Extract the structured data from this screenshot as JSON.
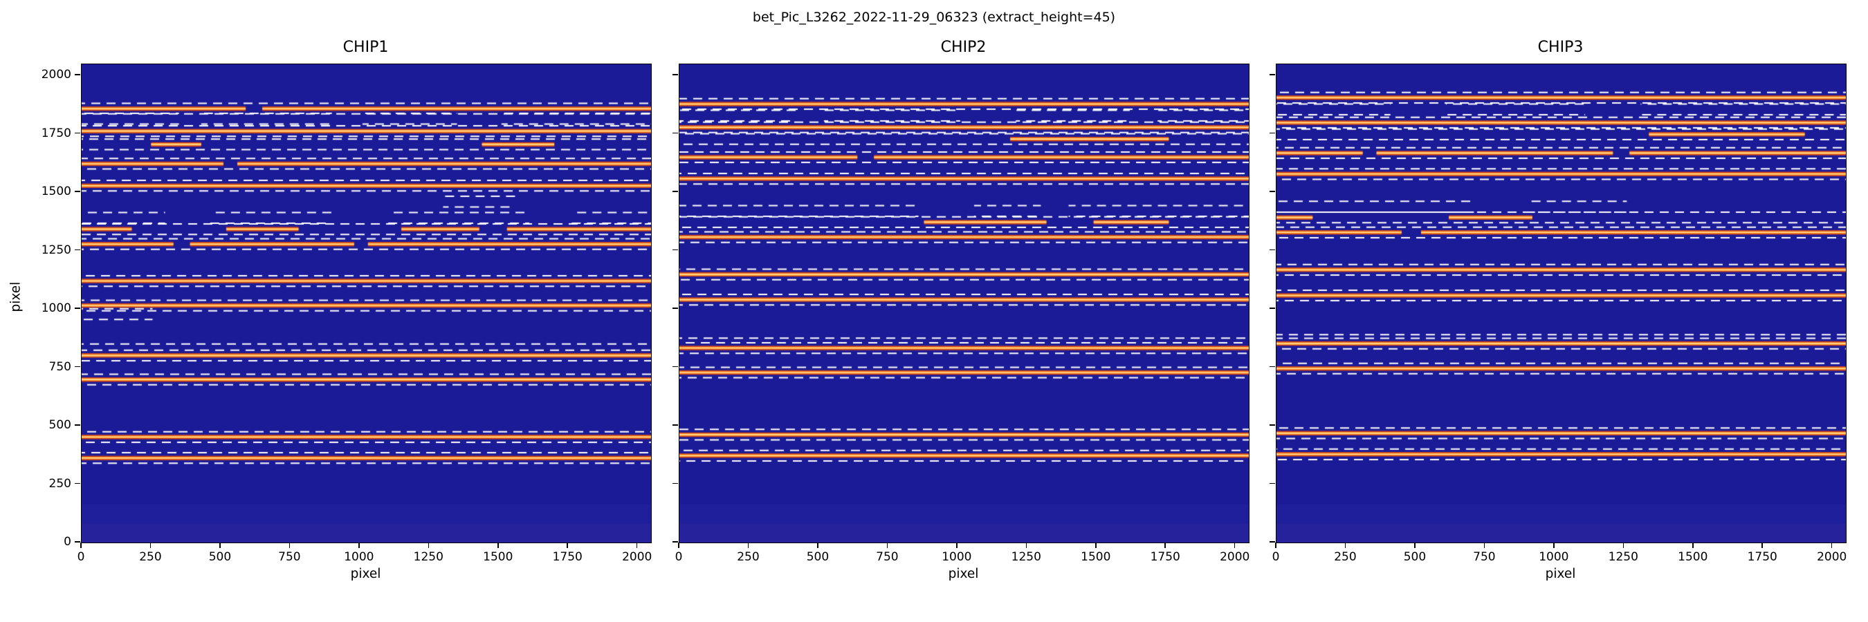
{
  "figure": {
    "title": "bet_Pic_L3262_2022-11-29_06323  (extract_height=45)"
  },
  "chart_data": {
    "type": "heatmap",
    "description": "Three echelle spectrograph detector frames (dark blue background) with bright orange spectral order traces; white dashed lines mark extraction window boundaries of half-height 22.5 px around each order (extract_height=45).",
    "extract_height": 45,
    "xlabel": "pixel",
    "ylabel": "pixel",
    "xlim": [
      0,
      2048
    ],
    "ylim": [
      0,
      2048
    ],
    "xticks": [
      "0",
      "250",
      "500",
      "750",
      "1000",
      "1250",
      "1500",
      "1750",
      "2000"
    ],
    "yticks": [
      "0",
      "250",
      "500",
      "750",
      "1000",
      "1250",
      "1500",
      "1750",
      "2000"
    ],
    "colors": {
      "background": "#1b1b97",
      "bottom_glow_1": "#23239e",
      "bottom_glow_2": "#2b259c",
      "trace_edge": "#c8401f",
      "trace": "#ff9726",
      "trace_core": "#ffd894",
      "extraction_line": "#ffffff",
      "text": "#000000"
    },
    "subplots": [
      {
        "title": "CHIP1",
        "yticklabels": true,
        "orders": [
          {
            "y": 362,
            "solid": [
              [
                0,
                2048
              ]
            ]
          },
          {
            "y": 452,
            "solid": [
              [
                0,
                2048
              ]
            ]
          },
          {
            "y": 698,
            "solid": [
              [
                0,
                2048
              ]
            ]
          },
          {
            "y": 801,
            "solid": [
              [
                0,
                2048
              ]
            ]
          },
          {
            "y": 1015,
            "solid": [
              [
                0,
                2048
              ]
            ]
          },
          {
            "y": 1120,
            "solid": [
              [
                0,
                2048
              ]
            ]
          },
          {
            "y": 1278,
            "solid": [
              [
                0,
                330
              ],
              [
                390,
                980
              ],
              [
                1030,
                2048
              ]
            ]
          },
          {
            "y": 1342,
            "solid": [
              [
                0,
                180
              ],
              [
                520,
                780
              ],
              [
                1150,
                1430
              ],
              [
                1530,
                2048
              ]
            ]
          },
          {
            "y": 1528,
            "solid": [
              [
                0,
                2048
              ]
            ]
          },
          {
            "y": 1622,
            "solid": [
              [
                0,
                510
              ],
              [
                560,
                2048
              ]
            ]
          },
          {
            "y": 1705,
            "solid": [
              [
                250,
                430
              ],
              [
                1440,
                1700
              ]
            ]
          },
          {
            "y": 1762,
            "solid": [
              [
                0,
                2048
              ]
            ]
          },
          {
            "y": 1858,
            "solid": [
              [
                0,
                590
              ],
              [
                650,
                2048
              ]
            ]
          }
        ],
        "ghosts": [
          {
            "y": 850,
            "segs": [
              [
                0,
                2048
              ]
            ]
          },
          {
            "y": 955,
            "segs": [
              [
                0,
                255
              ]
            ]
          },
          {
            "y": 1001,
            "segs": [
              [
                0,
                255
              ]
            ]
          },
          {
            "y": 1367,
            "segs": [
              [
                0,
                300
              ],
              [
                460,
                900
              ],
              [
                1100,
                1610
              ],
              [
                1760,
                2048
              ]
            ]
          },
          {
            "y": 1413,
            "segs": [
              [
                0,
                300
              ],
              [
                460,
                900
              ],
              [
                1100,
                1610
              ],
              [
                1760,
                2048
              ]
            ]
          },
          {
            "y": 1437,
            "segs": [
              [
                1300,
                1560
              ]
            ]
          },
          {
            "y": 1483,
            "segs": [
              [
                1300,
                1560
              ]
            ]
          },
          {
            "y": 1792,
            "segs": [
              [
                0,
                350
              ],
              [
                430,
                900
              ],
              [
                1010,
                1350
              ],
              [
                1510,
                2048
              ]
            ]
          },
          {
            "y": 1838,
            "segs": [
              [
                0,
                350
              ],
              [
                430,
                900
              ],
              [
                1010,
                1350
              ],
              [
                1510,
                2048
              ]
            ]
          }
        ]
      },
      {
        "title": "CHIP2",
        "yticklabels": false,
        "orders": [
          {
            "y": 372,
            "solid": [
              [
                0,
                2048
              ]
            ]
          },
          {
            "y": 462,
            "solid": [
              [
                0,
                2048
              ]
            ]
          },
          {
            "y": 728,
            "solid": [
              [
                0,
                2048
              ]
            ]
          },
          {
            "y": 833,
            "solid": [
              [
                0,
                2048
              ]
            ]
          },
          {
            "y": 1040,
            "solid": [
              [
                0,
                2048
              ]
            ]
          },
          {
            "y": 1148,
            "solid": [
              [
                0,
                2048
              ]
            ]
          },
          {
            "y": 1308,
            "solid": [
              [
                0,
                2048
              ]
            ]
          },
          {
            "y": 1372,
            "solid": [
              [
                880,
                1320
              ],
              [
                1490,
                1760
              ]
            ]
          },
          {
            "y": 1558,
            "solid": [
              [
                0,
                2048
              ]
            ]
          },
          {
            "y": 1650,
            "solid": [
              [
                0,
                640
              ],
              [
                700,
                2048
              ]
            ]
          },
          {
            "y": 1728,
            "solid": [
              [
                1190,
                1760
              ]
            ]
          },
          {
            "y": 1778,
            "solid": [
              [
                0,
                2048
              ]
            ]
          },
          {
            "y": 1878,
            "solid": [
              [
                0,
                2048
              ]
            ]
          }
        ],
        "ghosts": [
          {
            "y": 875,
            "segs": [
              [
                0,
                2048
              ]
            ]
          },
          {
            "y": 1397,
            "segs": [
              [
                0,
                860
              ],
              [
                1060,
                1300
              ],
              [
                1400,
                2048
              ]
            ]
          },
          {
            "y": 1443,
            "segs": [
              [
                0,
                860
              ],
              [
                1060,
                1300
              ],
              [
                1400,
                2048
              ]
            ]
          },
          {
            "y": 1805,
            "segs": [
              [
                0,
                420
              ],
              [
                520,
                1010
              ],
              [
                1210,
                1620
              ],
              [
                1720,
                2048
              ]
            ]
          },
          {
            "y": 1851,
            "segs": [
              [
                0,
                420
              ],
              [
                520,
                1010
              ],
              [
                1210,
                1620
              ],
              [
                1720,
                2048
              ]
            ]
          }
        ]
      },
      {
        "title": "CHIP3",
        "yticklabels": false,
        "orders": [
          {
            "y": 378,
            "solid": [
              [
                0,
                2048
              ]
            ]
          },
          {
            "y": 468,
            "solid": [
              [
                0,
                2048
              ]
            ]
          },
          {
            "y": 745,
            "solid": [
              [
                0,
                2048
              ]
            ]
          },
          {
            "y": 852,
            "solid": [
              [
                0,
                2048
              ]
            ]
          },
          {
            "y": 1058,
            "solid": [
              [
                0,
                2048
              ]
            ]
          },
          {
            "y": 1168,
            "solid": [
              [
                0,
                2048
              ]
            ]
          },
          {
            "y": 1328,
            "solid": [
              [
                0,
                450
              ],
              [
                520,
                2048
              ]
            ]
          },
          {
            "y": 1392,
            "solid": [
              [
                0,
                130
              ],
              [
                620,
                920
              ]
            ]
          },
          {
            "y": 1578,
            "solid": [
              [
                0,
                2048
              ]
            ]
          },
          {
            "y": 1668,
            "solid": [
              [
                0,
                310
              ],
              [
                360,
                1210
              ],
              [
                1270,
                2048
              ]
            ]
          },
          {
            "y": 1748,
            "solid": [
              [
                1340,
                1900
              ]
            ]
          },
          {
            "y": 1798,
            "solid": [
              [
                0,
                2048
              ]
            ]
          },
          {
            "y": 1905,
            "solid": [
              [
                0,
                2048
              ]
            ]
          }
        ],
        "ghosts": [
          {
            "y": 890,
            "segs": [
              [
                0,
                2048
              ]
            ]
          },
          {
            "y": 1415,
            "segs": [
              [
                0,
                710
              ],
              [
                910,
                1260
              ]
            ]
          },
          {
            "y": 1461,
            "segs": [
              [
                0,
                710
              ],
              [
                910,
                1260
              ]
            ]
          },
          {
            "y": 1832,
            "segs": [
              [
                0,
                410
              ],
              [
                610,
                1110
              ],
              [
                1310,
                2048
              ]
            ]
          },
          {
            "y": 1878,
            "segs": [
              [
                0,
                410
              ],
              [
                610,
                1110
              ],
              [
                1310,
                2048
              ]
            ]
          }
        ]
      }
    ]
  }
}
